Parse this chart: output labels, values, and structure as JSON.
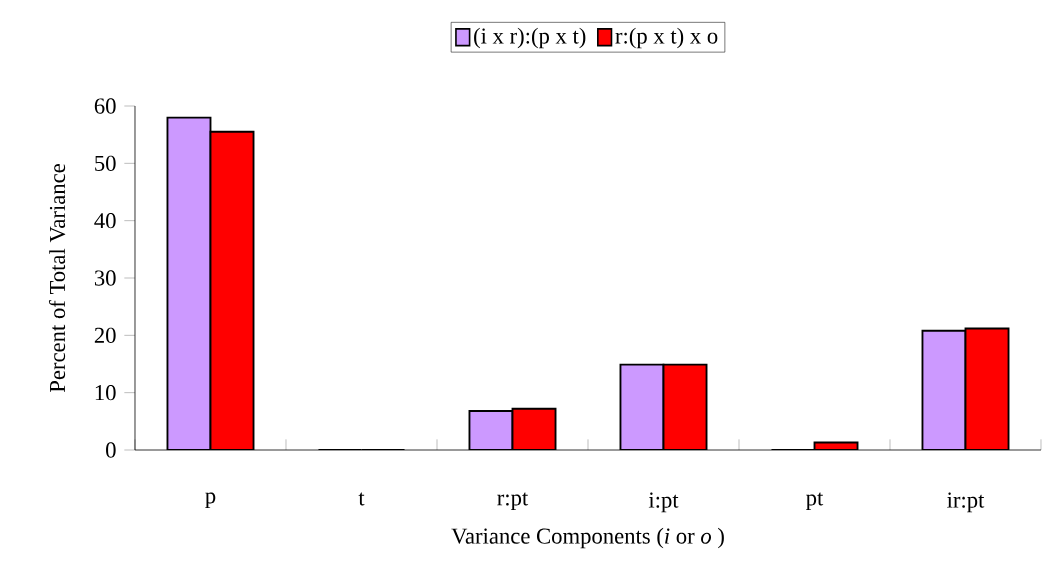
{
  "chart_data": {
    "type": "bar",
    "categories": [
      "p",
      "t",
      "r:pt",
      "i:pt",
      "pt",
      "ir:pt"
    ],
    "series": [
      {
        "name": "(i x r):(p x t)",
        "color": "#cc99ff",
        "values": [
          58,
          0,
          6.8,
          14.9,
          0,
          20.8
        ]
      },
      {
        "name": "r:(p x t) x o",
        "color": "#ff0000",
        "values": [
          55.5,
          0,
          7.2,
          14.9,
          1.3,
          21.2
        ]
      }
    ],
    "xlabel": "Variance Components (*i* or *o* )",
    "ylabel": "Percent of Total Variance",
    "ylim": [
      0,
      60
    ],
    "yticks": [
      0,
      10,
      20,
      30,
      40,
      50,
      60
    ],
    "legend": "top",
    "grid": false
  }
}
